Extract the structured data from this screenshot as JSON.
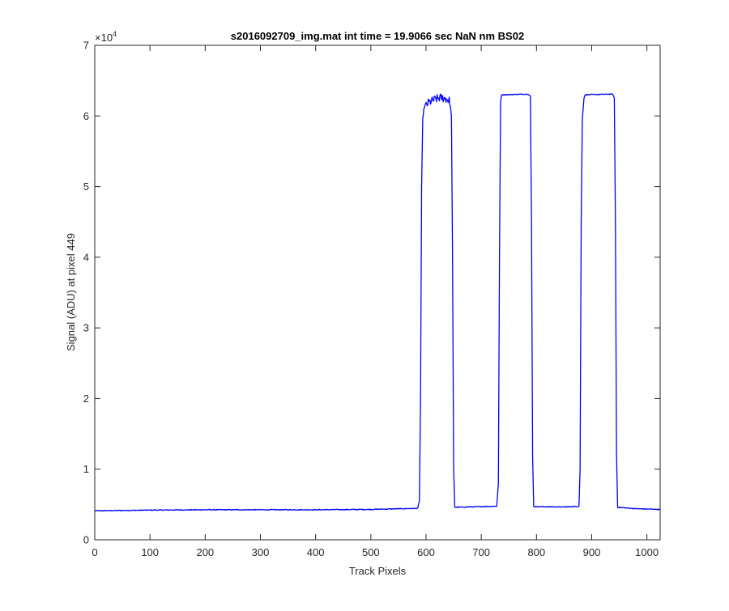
{
  "chart_data": {
    "type": "line",
    "title": "s2016092709_img.mat int time = 19.9066 sec  NaN nm BS02",
    "xlabel": "Track Pixels",
    "ylabel": "Signal (ADU) at pixel 449",
    "xlim": [
      0,
      1024
    ],
    "ylim": [
      0,
      70000
    ],
    "x_ticks": [
      0,
      100,
      200,
      300,
      400,
      500,
      600,
      700,
      800,
      900,
      1000
    ],
    "y_ticks": [
      0,
      1,
      2,
      3,
      4,
      5,
      6,
      7
    ],
    "y_exponent_base": "×10",
    "y_exponent": "4",
    "y_multiplier": 10000,
    "grid": false,
    "line_color": "#0000ff",
    "series": [
      {
        "profile": [
          [
            0,
            4100
          ],
          [
            100,
            4200
          ],
          [
            200,
            4250
          ],
          [
            300,
            4250
          ],
          [
            400,
            4250
          ],
          [
            500,
            4300
          ],
          [
            585,
            4450
          ],
          [
            588,
            5500
          ],
          [
            590,
            20000
          ],
          [
            592,
            50000
          ],
          [
            594,
            59500
          ],
          [
            596,
            61000
          ],
          [
            598,
            61300
          ],
          [
            605,
            61900
          ],
          [
            615,
            62300
          ],
          [
            625,
            62600
          ],
          [
            635,
            62500
          ],
          [
            643,
            62100
          ],
          [
            646,
            60000
          ],
          [
            648,
            40000
          ],
          [
            650,
            10000
          ],
          [
            652,
            4600
          ],
          [
            700,
            4700
          ],
          [
            728,
            4750
          ],
          [
            731,
            8000
          ],
          [
            733,
            40000
          ],
          [
            735,
            62000
          ],
          [
            737,
            63000
          ],
          [
            785,
            63100
          ],
          [
            789,
            62800
          ],
          [
            791,
            45000
          ],
          [
            793,
            12000
          ],
          [
            795,
            4700
          ],
          [
            850,
            4650
          ],
          [
            877,
            4750
          ],
          [
            879,
            10000
          ],
          [
            881,
            45000
          ],
          [
            883,
            59500
          ],
          [
            886,
            62500
          ],
          [
            888,
            63000
          ],
          [
            938,
            63100
          ],
          [
            941,
            62500
          ],
          [
            943,
            45000
          ],
          [
            945,
            12000
          ],
          [
            947,
            4600
          ],
          [
            980,
            4400
          ],
          [
            1024,
            4300
          ]
        ],
        "noise_segments": [
          [
            598,
            643
          ]
        ]
      }
    ]
  }
}
